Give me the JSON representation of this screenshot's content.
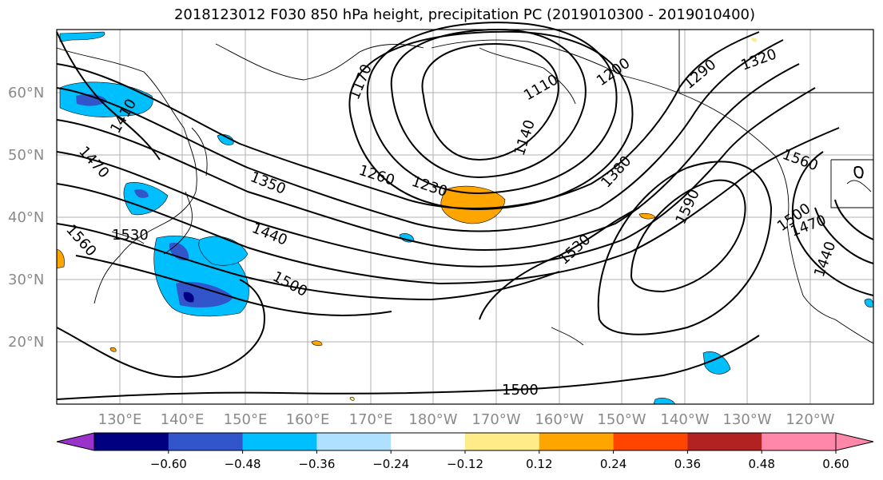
{
  "title": "2018123012 F030 850 hPa height, precipitation PC (2019010300 - 2019010400)",
  "latitude_labels": [
    "60°N",
    "50°N",
    "40°N",
    "30°N",
    "20°N"
  ],
  "longitude_labels": [
    "130°E",
    "140°E",
    "150°E",
    "160°E",
    "170°E",
    "180°W",
    "170°W",
    "160°W",
    "150°W",
    "140°W",
    "130°W",
    "120°W"
  ],
  "contour_labels": [
    "1170",
    "1110",
    "1200",
    "1320",
    "1290",
    "1410",
    "1470",
    "1350",
    "1260",
    "1230",
    "1140",
    "1380",
    "1560",
    "1530",
    "1440",
    "1500",
    "1590",
    "1530",
    "1500",
    "1470",
    "1440",
    "1560",
    "1500"
  ],
  "colorbar": {
    "ticks": [
      "−0.60",
      "−0.48",
      "−0.36",
      "−0.24",
      "−0.12",
      "0.12",
      "0.24",
      "0.36",
      "0.48",
      "0.60"
    ],
    "colors": [
      "#9933cc",
      "#000080",
      "#3355cc",
      "#00bfff",
      "#b0e0ff",
      "#ffffff",
      "#ffeb88",
      "#ffa500",
      "#ff4500",
      "#b22222",
      "#ff88aa",
      "#ff88aa"
    ]
  }
}
